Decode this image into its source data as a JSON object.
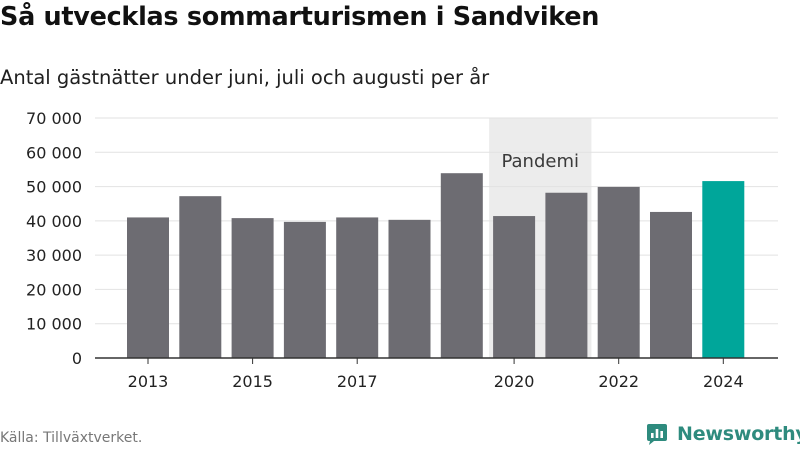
{
  "header": {
    "title": "Så utvecklas sommarturismen i Sandviken",
    "subtitle": "Antal gästnätter under juni, juli och augusti per år"
  },
  "chart_data": {
    "type": "bar",
    "categories": [
      "2013",
      "2014",
      "2015",
      "2016",
      "2017",
      "2018",
      "2019",
      "2020",
      "2021",
      "2022",
      "2023",
      "2024"
    ],
    "x_tick_labels": [
      "2013",
      "2015",
      "2017",
      "2020",
      "2022",
      "2024"
    ],
    "values": [
      41000,
      47200,
      40800,
      39700,
      41000,
      40300,
      53900,
      41400,
      48200,
      49900,
      42600,
      51600
    ],
    "ylim": [
      0,
      70000
    ],
    "y_ticks": [
      0,
      10000,
      20000,
      30000,
      40000,
      50000,
      60000,
      70000
    ],
    "y_tick_labels": [
      "0",
      "10 000",
      "20 000",
      "30 000",
      "40 000",
      "50 000",
      "60 000",
      "70 000"
    ],
    "grid": true,
    "highlight_category": "2024",
    "annotation": {
      "label": "Pandemi",
      "categories": [
        "2020",
        "2021"
      ]
    },
    "colors": {
      "bar": "#6d6c72",
      "highlight": "#00a69a",
      "annotation_band": "#ececec",
      "grid": "#e2e2e2",
      "axis": "#333333"
    }
  },
  "footer": {
    "source": "Källa: Tillväxtverket.",
    "brand": "Newsworthy",
    "brand_icon": "bar-chart-logo-icon",
    "brand_color": "#2e8b7e"
  }
}
